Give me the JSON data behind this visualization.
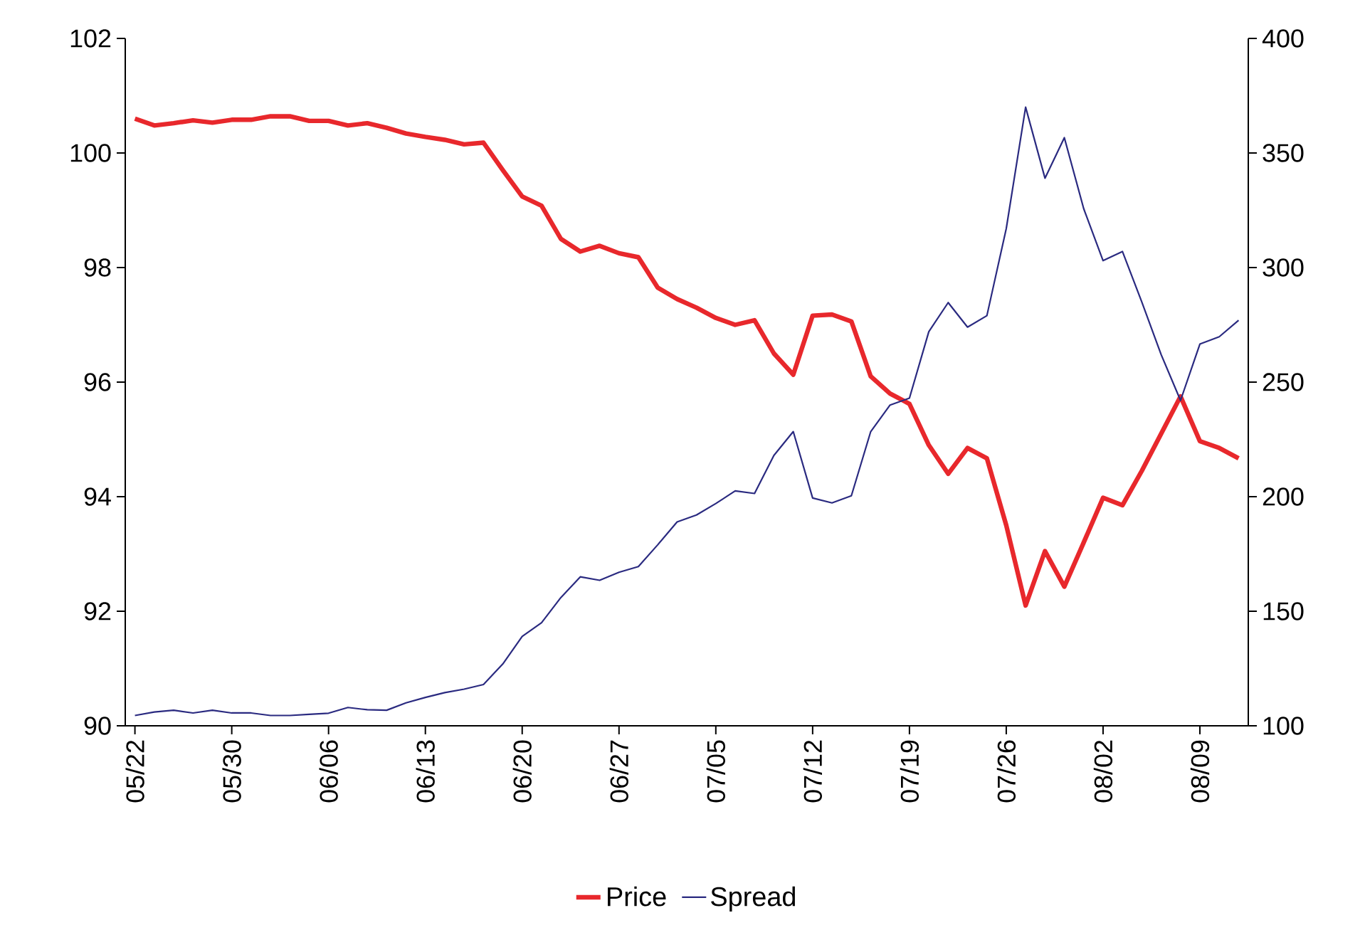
{
  "chart_data": {
    "type": "line",
    "categories": [
      "05/22",
      null,
      null,
      null,
      null,
      "05/30",
      null,
      null,
      null,
      null,
      "06/06",
      null,
      null,
      null,
      null,
      "06/13",
      null,
      null,
      null,
      null,
      "06/20",
      null,
      null,
      null,
      null,
      "06/27",
      null,
      null,
      null,
      null,
      "07/05",
      null,
      null,
      null,
      null,
      "07/12",
      null,
      null,
      null,
      null,
      "07/19",
      null,
      null,
      null,
      null,
      "07/26",
      null,
      null,
      null,
      null,
      "08/02",
      null,
      null,
      null,
      null,
      "08/09",
      null,
      null
    ],
    "series": [
      {
        "name": "Price",
        "color": "#e8282c",
        "values": [
          100.6,
          100.48,
          100.52,
          100.57,
          100.53,
          100.58,
          100.58,
          100.64,
          100.64,
          100.56,
          100.56,
          100.48,
          100.52,
          100.44,
          100.34,
          100.28,
          100.23,
          100.15,
          100.18,
          99.7,
          99.24,
          99.08,
          98.5,
          98.28,
          98.38,
          98.25,
          98.18,
          97.65,
          97.45,
          97.3,
          97.12,
          97.0,
          97.08,
          96.5,
          96.13,
          97.16,
          97.18,
          97.06,
          96.1,
          95.8,
          95.62,
          94.9,
          94.4,
          94.85,
          94.67,
          93.5,
          92.1,
          93.05,
          92.43,
          93.2,
          93.98,
          93.85,
          94.45,
          95.1,
          95.75,
          94.97,
          94.85,
          94.67
        ]
      },
      {
        "name": "Spread",
        "color": "#2a2a80",
        "axis": "y2",
        "values": [
          104.5,
          106,
          106.8,
          105.6,
          106.8,
          105.6,
          105.6,
          104.5,
          104.5,
          105,
          105.5,
          108,
          107,
          106.8,
          110,
          112.4,
          114.5,
          116,
          118,
          127,
          139,
          145,
          156,
          165,
          163.5,
          167,
          169.5,
          179,
          189,
          192,
          197,
          202.5,
          201.4,
          218,
          228.4,
          199.4,
          197.3,
          200.4,
          228.4,
          240,
          243,
          272,
          284.7,
          274,
          279,
          317,
          370,
          339,
          356.7,
          325.7,
          303,
          307,
          285,
          262,
          242,
          266.6,
          269.8,
          277
        ]
      }
    ],
    "ylim": [
      90,
      102
    ],
    "yticks": [
      90,
      92,
      94,
      96,
      98,
      100,
      102
    ],
    "y2lim": [
      100,
      400
    ],
    "y2ticks": [
      100,
      150,
      200,
      250,
      300,
      350,
      400
    ],
    "legend": "bottom"
  }
}
